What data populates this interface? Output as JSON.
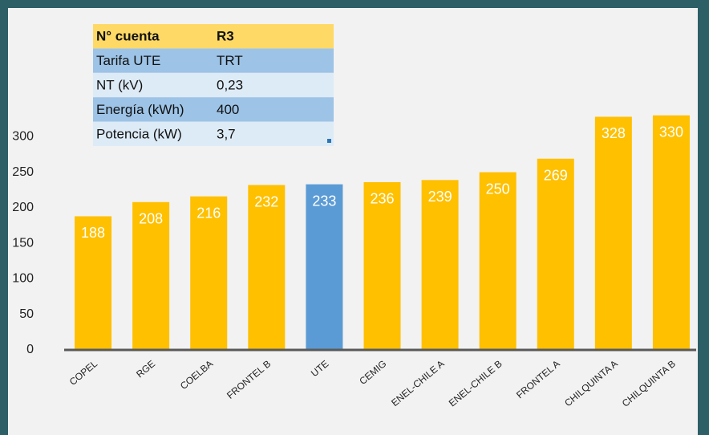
{
  "chart_data": {
    "type": "bar",
    "categories": [
      "COPEL",
      "RGE",
      "COELBA",
      "FRONTEL B",
      "UTE",
      "CEMIG",
      "ENEL-CHILE A",
      "ENEL-CHILE B",
      "FRONTEL A",
      "CHILQUINTA A",
      "CHILQUINTA B"
    ],
    "values": [
      188,
      208,
      216,
      232,
      233,
      236,
      239,
      250,
      269,
      328,
      330
    ],
    "colors": [
      "#ffc000",
      "#ffc000",
      "#ffc000",
      "#ffc000",
      "#5b9bd5",
      "#ffc000",
      "#ffc000",
      "#ffc000",
      "#ffc000",
      "#ffc000",
      "#ffc000"
    ],
    "ylim": [
      0,
      350
    ],
    "yticks": [
      0,
      50,
      100,
      150,
      200,
      250,
      300
    ],
    "grid": false
  },
  "table": {
    "rows": [
      [
        "N° cuenta",
        "R3"
      ],
      [
        "Tarifa UTE",
        "TRT"
      ],
      [
        "NT (kV)",
        "0,23"
      ],
      [
        "Energía (kWh)",
        "400"
      ],
      [
        "Potencia (kW)",
        "3,7"
      ]
    ]
  }
}
